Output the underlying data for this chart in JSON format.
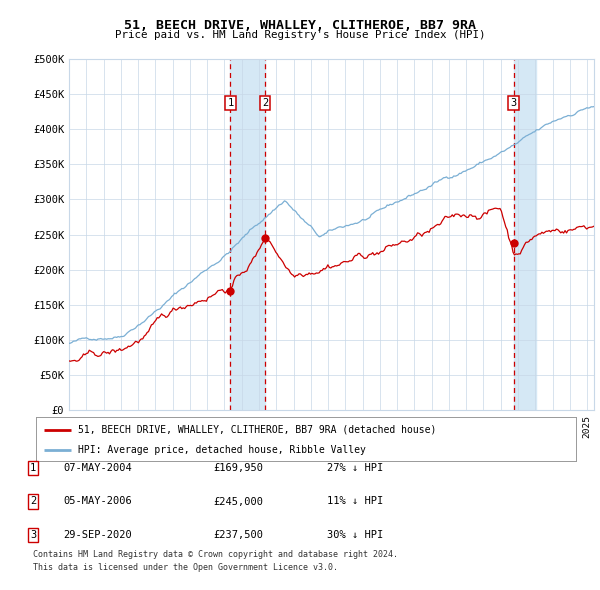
{
  "title": "51, BEECH DRIVE, WHALLEY, CLITHEROE, BB7 9RA",
  "subtitle": "Price paid vs. HM Land Registry's House Price Index (HPI)",
  "ylim": [
    0,
    500000
  ],
  "yticks": [
    0,
    50000,
    100000,
    150000,
    200000,
    250000,
    300000,
    350000,
    400000,
    450000,
    500000
  ],
  "ytick_labels": [
    "£0",
    "£50K",
    "£100K",
    "£150K",
    "£200K",
    "£250K",
    "£300K",
    "£350K",
    "£400K",
    "£450K",
    "£500K"
  ],
  "hpi_color": "#7bafd4",
  "price_color": "#cc0000",
  "shade_color": "#d5e8f5",
  "plot_bg": "#ffffff",
  "grid_color": "#c8d8e8",
  "transactions": [
    {
      "num": 1,
      "date": "07-MAY-2004",
      "price": 169950,
      "year": 2004.35
    },
    {
      "num": 2,
      "date": "05-MAY-2006",
      "price": 245000,
      "year": 2006.35
    },
    {
      "num": 3,
      "date": "29-SEP-2020",
      "price": 237500,
      "year": 2020.75
    }
  ],
  "legend_line1": "51, BEECH DRIVE, WHALLEY, CLITHEROE, BB7 9RA (detached house)",
  "legend_line2": "HPI: Average price, detached house, Ribble Valley",
  "footnote1": "Contains HM Land Registry data © Crown copyright and database right 2024.",
  "footnote2": "This data is licensed under the Open Government Licence v3.0.",
  "table_rows": [
    [
      "1",
      "07-MAY-2004",
      "£169,950",
      "27% ↓ HPI"
    ],
    [
      "2",
      "05-MAY-2006",
      "£245,000",
      "11% ↓ HPI"
    ],
    [
      "3",
      "29-SEP-2020",
      "£237,500",
      "30% ↓ HPI"
    ]
  ]
}
